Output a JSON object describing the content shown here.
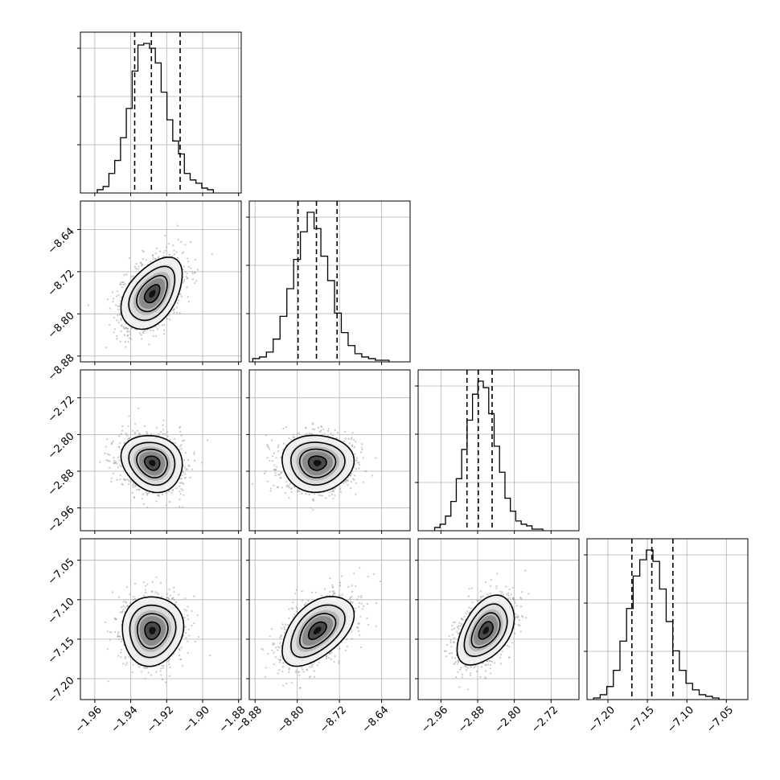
{
  "chart_data": {
    "type": "corner",
    "params": [
      {
        "mean": -1.928,
        "sd": 0.0085,
        "q16": -1.9378,
        "q50": -1.9285,
        "q84": -1.9125,
        "range": [
          -1.968,
          -1.8785
        ],
        "ticks": [
          -1.96,
          -1.94,
          -1.92,
          -1.9,
          -1.88
        ],
        "tick_labels": [
          "−1.96",
          "−1.94",
          "−1.92",
          "−1.90",
          "−1.88"
        ]
      },
      {
        "mean": -8.762,
        "sd": 0.034,
        "q16": -8.7985,
        "q50": -8.7636,
        "q84": -8.7245,
        "range": [
          -8.891,
          -8.586
        ],
        "ticks": [
          -8.88,
          -8.8,
          -8.72,
          -8.64
        ],
        "tick_labels": [
          "−8.88",
          "−8.80",
          "−8.72",
          "−8.64"
        ]
      },
      {
        "mean": -2.862,
        "sd": 0.031,
        "q16": -2.9032,
        "q50": -2.8785,
        "q84": -2.8485,
        "range": [
          -3.0096,
          -2.6592
        ],
        "ticks": [
          -2.96,
          -2.88,
          -2.8,
          -2.72
        ],
        "tick_labels": [
          "−2.96",
          "−2.88",
          "−2.80",
          "−2.72"
        ]
      },
      {
        "mean": -7.139,
        "sd": 0.022,
        "q16": -7.1697,
        "q50": -7.1444,
        "q84": -7.1177,
        "range": [
          -7.2265,
          -7.0228
        ],
        "ticks": [
          -7.2,
          -7.15,
          -7.1,
          -7.05
        ],
        "tick_labels": [
          "−7.20",
          "−7.15",
          "−7.10",
          "−7.05"
        ]
      }
    ],
    "hist_counts": [
      [
        2,
        4,
        12,
        20,
        34,
        52,
        75,
        91,
        92,
        89,
        80,
        62,
        45,
        32,
        24,
        12,
        8,
        6,
        3,
        2
      ],
      [
        2,
        3,
        6,
        14,
        28,
        45,
        63,
        80,
        92,
        82,
        65,
        50,
        30,
        18,
        10,
        5,
        3,
        2,
        1,
        1
      ],
      [
        2,
        4,
        9,
        18,
        32,
        50,
        68,
        84,
        92,
        88,
        72,
        52,
        36,
        20,
        12,
        6,
        4,
        3,
        1,
        1
      ],
      [
        1,
        3,
        8,
        18,
        36,
        56,
        76,
        86,
        92,
        85,
        68,
        48,
        30,
        18,
        10,
        6,
        3,
        2,
        1,
        0
      ]
    ],
    "correlations": [
      [
        1,
        0.45,
        -0.15,
        0.05
      ],
      [
        0.45,
        1,
        0.0,
        0.5
      ],
      [
        -0.15,
        0.0,
        1,
        0.45
      ],
      [
        0.05,
        0.5,
        0.45,
        1
      ]
    ],
    "contour_levels_sigma": [
      0.5,
      1.0,
      1.5,
      2.0
    ],
    "n_scatter_points": 220,
    "grid": true,
    "colors": {
      "hist": "#000000",
      "scatter": "#9a9a9a",
      "density_dark": "#000000",
      "contours": "#000000"
    }
  }
}
